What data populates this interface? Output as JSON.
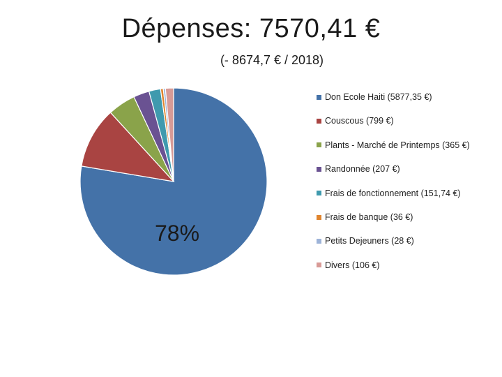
{
  "slide": {
    "title": "Dépenses: 7570,41 €",
    "subtitle": "(- 8674,7 € / 2018)"
  },
  "chart_data": {
    "type": "pie",
    "title": "",
    "total_label": "Dépenses: 7570,41 €",
    "data_labels": [
      {
        "slice_index": 0,
        "text": "78%"
      }
    ],
    "legend_position": "right",
    "series": [
      {
        "label": "Don Ecole Haiti (5877,35 €)",
        "value": 5877.35,
        "color": "#4472a8"
      },
      {
        "label": "Couscous (799  €)",
        "value": 799,
        "color": "#a94442"
      },
      {
        "label": "Plants - Marché de Printemps (365 €)",
        "value": 365,
        "color": "#8aa34a"
      },
      {
        "label": "Randonnée (207 €)",
        "value": 207,
        "color": "#6a5292"
      },
      {
        "label": "Frais de fonctionnement (151,74 €)",
        "value": 151.74,
        "color": "#3f9aae"
      },
      {
        "label": "Frais de banque (36 €)",
        "value": 36,
        "color": "#e0852e"
      },
      {
        "label": "Petits Dejeuners (28 €)",
        "value": 28,
        "color": "#9db3d8"
      },
      {
        "label": "Divers (106 €)",
        "value": 106,
        "color": "#d89a96"
      }
    ]
  }
}
